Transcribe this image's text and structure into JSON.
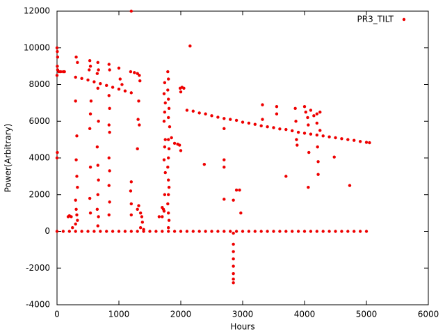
{
  "chart_data": {
    "type": "scatter",
    "xlabel": "Hours",
    "ylabel": "Power(Arbitrary)",
    "xlim": [
      0,
      6000
    ],
    "xticks": [
      0,
      1000,
      2000,
      3000,
      4000,
      5000,
      6000
    ],
    "ylim": [
      -4000,
      12000
    ],
    "yticks": [
      -4000,
      -2000,
      0,
      2000,
      4000,
      6000,
      8000,
      10000,
      12000
    ],
    "grid": false,
    "legend": "top-right",
    "series": [
      {
        "name": "PR3_TILT",
        "color": "#ee0000",
        "x": [
          0,
          100,
          200,
          300,
          400,
          500,
          600,
          700,
          800,
          900,
          1000,
          1100,
          1200,
          1300,
          1400,
          1500,
          1600,
          1700,
          1800,
          1900,
          2000,
          2100,
          2200,
          2300,
          2400,
          2500,
          2600,
          2700,
          2800,
          2900,
          3000,
          3100,
          3200,
          3300,
          3400,
          3500,
          3600,
          3700,
          3800,
          3900,
          4000,
          4100,
          4200,
          4300,
          4400,
          4500,
          4600,
          4700,
          4800,
          4900,
          5000,
          0,
          5,
          10,
          5,
          10,
          0,
          5,
          0,
          30,
          60,
          100,
          120,
          300,
          400,
          500,
          600,
          700,
          800,
          900,
          1000,
          1100,
          1200,
          310,
          330,
          300,
          320,
          310,
          320,
          330,
          300,
          310,
          320,
          330,
          300,
          530,
          540,
          520,
          550,
          540,
          530,
          540,
          530,
          540,
          660,
          670,
          650,
          660,
          670,
          650,
          660,
          670,
          660,
          650,
          670,
          660,
          840,
          850,
          840,
          850,
          840,
          850,
          840,
          850,
          840,
          850,
          840,
          1000,
          1020,
          1050,
          1200,
          1190,
          1200,
          1190,
          1200,
          1200,
          1250,
          1300,
          1330,
          1340,
          1320,
          1310,
          1330,
          1300,
          1300,
          1320,
          1350,
          1370,
          1380,
          1350,
          1400,
          180,
          200,
          230,
          250,
          1650,
          1700,
          1720,
          1700,
          1740,
          1730,
          1750,
          1740,
          1730,
          1750,
          1740,
          1730,
          1750,
          1740,
          1730,
          1790,
          1800,
          1790,
          1800,
          1810,
          1800,
          1820,
          1800,
          1810,
          1800,
          1790,
          1800,
          1810,
          1800,
          1790,
          1800,
          1810,
          1800,
          1850,
          1900,
          1950,
          1980,
          2000,
          1990,
          2020,
          2050,
          2000,
          2150,
          2100,
          2200,
          2300,
          2400,
          2500,
          2600,
          2700,
          2800,
          2900,
          2380,
          2700,
          2700,
          2700,
          2700,
          2850,
          2950,
          2900,
          2970,
          2850,
          2850,
          2850,
          2850,
          2850,
          2850,
          2850,
          2850,
          3000,
          3100,
          3200,
          3300,
          3400,
          3500,
          3600,
          3320,
          3320,
          3550,
          3550,
          3700,
          3800,
          3900,
          4000,
          4100,
          4200,
          4300,
          4400,
          4500,
          4600,
          4700,
          4800,
          4900,
          5000,
          5050,
          3850,
          3860,
          3870,
          3880,
          4000,
          4020,
          4050,
          4060,
          4070,
          4060,
          4100,
          4150,
          4200,
          4200,
          4210,
          4220,
          4220,
          4250,
          4250,
          3700,
          4480,
          4730
        ],
        "values": [
          0,
          0,
          0,
          0,
          0,
          0,
          0,
          0,
          0,
          0,
          0,
          0,
          0,
          0,
          0,
          0,
          0,
          0,
          0,
          0,
          0,
          0,
          0,
          0,
          0,
          0,
          0,
          0,
          0,
          0,
          0,
          0,
          0,
          0,
          0,
          0,
          0,
          0,
          0,
          0,
          0,
          0,
          0,
          0,
          0,
          0,
          0,
          0,
          0,
          0,
          0,
          10000,
          9800,
          9500,
          9000,
          8800,
          8500,
          4300,
          4000,
          8700,
          8700,
          8700,
          8700,
          8400,
          8330,
          8250,
          8150,
          8050,
          7950,
          7850,
          7750,
          7650,
          7550,
          9500,
          9200,
          7100,
          5200,
          3900,
          3000,
          2400,
          1700,
          1200,
          900,
          600,
          400,
          9300,
          9000,
          8800,
          7100,
          6400,
          5600,
          3500,
          1800,
          1000,
          9200,
          8800,
          8600,
          7800,
          6000,
          4600,
          3600,
          2800,
          2000,
          1200,
          800,
          300,
          9100,
          8800,
          7400,
          6700,
          5800,
          5400,
          4000,
          3300,
          2500,
          1600,
          900,
          8900,
          8300,
          8000,
          12000,
          8700,
          2700,
          2200,
          1500,
          900,
          8650,
          8600,
          8500,
          8200,
          7100,
          6100,
          5800,
          4500,
          1200,
          1400,
          1000,
          800,
          500,
          200,
          100,
          800,
          850,
          800,
          200,
          800,
          800,
          1200,
          1300,
          8100,
          7500,
          7000,
          6500,
          6000,
          5000,
          4600,
          3900,
          3200,
          2000,
          1100,
          8700,
          8300,
          7700,
          7200,
          6700,
          6200,
          5700,
          5000,
          4500,
          4000,
          3500,
          2800,
          2400,
          2000,
          1500,
          1000,
          600,
          200,
          5100,
          4800,
          4750,
          4700,
          4400,
          7800,
          7850,
          7800,
          7600,
          10100,
          6600,
          6550,
          6450,
          6400,
          6300,
          6220,
          6150,
          6100,
          6050,
          3650,
          5600,
          3900,
          3500,
          1750,
          1700,
          2250,
          2250,
          1000,
          -100,
          -700,
          -1100,
          -1500,
          -1900,
          -2300,
          -2600,
          -2800,
          5950,
          5900,
          5830,
          5750,
          5700,
          5650,
          5580,
          6900,
          6100,
          6800,
          6400,
          5550,
          5480,
          5400,
          5350,
          5300,
          5250,
          5200,
          5150,
          5100,
          5050,
          5000,
          4960,
          4900,
          4850,
          4830,
          6700,
          6000,
          5000,
          4700,
          6800,
          6500,
          6200,
          5800,
          4300,
          2400,
          6600,
          6300,
          6400,
          5900,
          4600,
          3800,
          3100,
          6500,
          5500,
          3000,
          4050,
          2500
        ]
      }
    ]
  }
}
